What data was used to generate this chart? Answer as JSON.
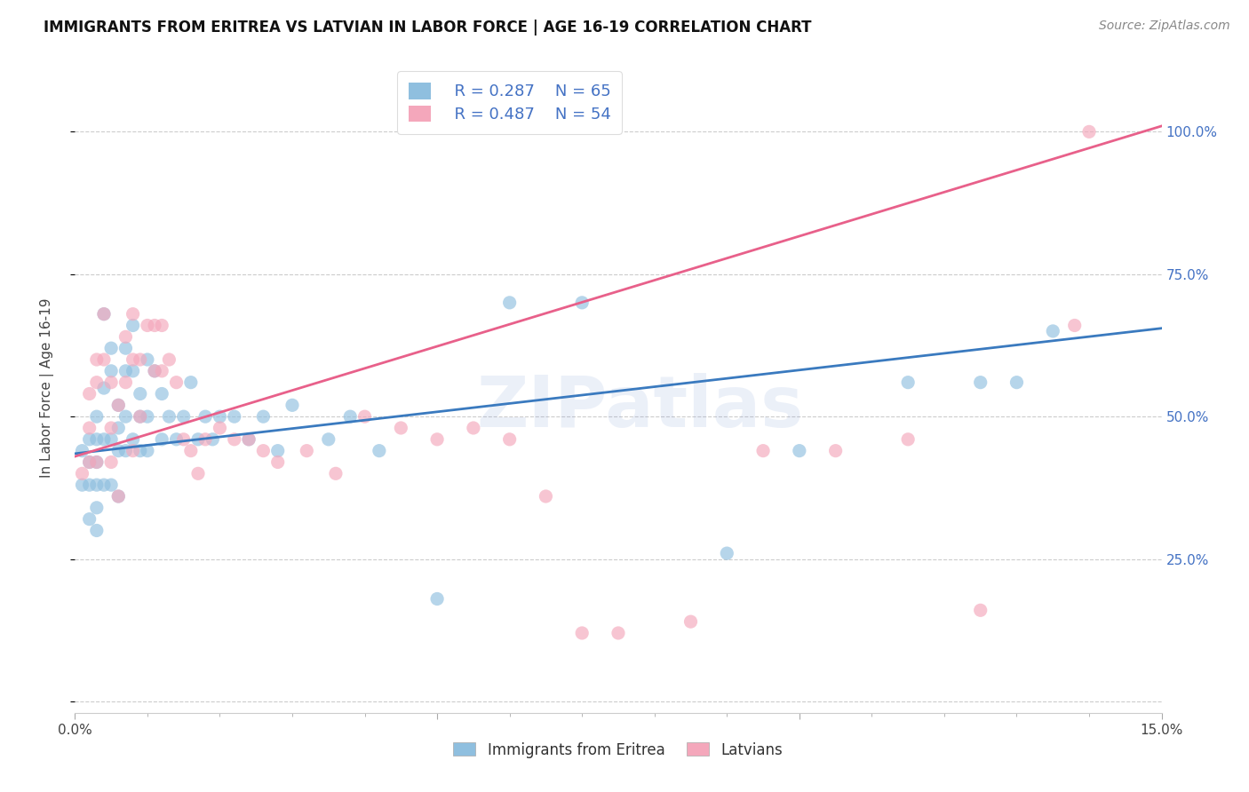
{
  "title": "IMMIGRANTS FROM ERITREA VS LATVIAN IN LABOR FORCE | AGE 16-19 CORRELATION CHART",
  "source": "Source: ZipAtlas.com",
  "ylabel": "In Labor Force | Age 16-19",
  "xlim": [
    0.0,
    0.15
  ],
  "ylim": [
    -0.02,
    1.12
  ],
  "xticks_major": [
    0.0,
    0.05,
    0.1,
    0.15
  ],
  "xtick_major_labels": [
    "0.0%",
    "",
    "",
    "15.0%"
  ],
  "xticks_minor": [
    0.01,
    0.02,
    0.03,
    0.04,
    0.06,
    0.07,
    0.08,
    0.09,
    0.11,
    0.12,
    0.13,
    0.14
  ],
  "yticks_right": [
    0.0,
    0.25,
    0.5,
    0.75,
    1.0
  ],
  "ytick_labels_right": [
    "",
    "25.0%",
    "50.0%",
    "75.0%",
    "100.0%"
  ],
  "ytick_grid_vals": [
    0.0,
    0.25,
    0.5,
    0.75,
    1.0
  ],
  "legend_r1": "R = 0.287",
  "legend_n1": "N = 65",
  "legend_r2": "R = 0.487",
  "legend_n2": "N = 54",
  "blue_color": "#8fbfdf",
  "pink_color": "#f4a7bb",
  "blue_line_color": "#3a7abf",
  "pink_line_color": "#e8608a",
  "watermark": "ZIPatlas",
  "blue_scatter_x": [
    0.001,
    0.001,
    0.002,
    0.002,
    0.002,
    0.002,
    0.003,
    0.003,
    0.003,
    0.003,
    0.003,
    0.003,
    0.004,
    0.004,
    0.004,
    0.004,
    0.005,
    0.005,
    0.005,
    0.005,
    0.006,
    0.006,
    0.006,
    0.006,
    0.007,
    0.007,
    0.007,
    0.007,
    0.008,
    0.008,
    0.008,
    0.009,
    0.009,
    0.009,
    0.01,
    0.01,
    0.01,
    0.011,
    0.012,
    0.012,
    0.013,
    0.014,
    0.015,
    0.016,
    0.017,
    0.018,
    0.019,
    0.02,
    0.022,
    0.024,
    0.026,
    0.028,
    0.03,
    0.035,
    0.038,
    0.042,
    0.05,
    0.06,
    0.07,
    0.09,
    0.1,
    0.115,
    0.125,
    0.13,
    0.135
  ],
  "blue_scatter_y": [
    0.38,
    0.44,
    0.42,
    0.46,
    0.38,
    0.32,
    0.46,
    0.5,
    0.42,
    0.38,
    0.34,
    0.3,
    0.68,
    0.55,
    0.46,
    0.38,
    0.62,
    0.58,
    0.46,
    0.38,
    0.52,
    0.48,
    0.44,
    0.36,
    0.62,
    0.58,
    0.5,
    0.44,
    0.66,
    0.58,
    0.46,
    0.54,
    0.5,
    0.44,
    0.6,
    0.5,
    0.44,
    0.58,
    0.54,
    0.46,
    0.5,
    0.46,
    0.5,
    0.56,
    0.46,
    0.5,
    0.46,
    0.5,
    0.5,
    0.46,
    0.5,
    0.44,
    0.52,
    0.46,
    0.5,
    0.44,
    0.18,
    0.7,
    0.7,
    0.26,
    0.44,
    0.56,
    0.56,
    0.56,
    0.65
  ],
  "pink_scatter_x": [
    0.001,
    0.002,
    0.002,
    0.002,
    0.003,
    0.003,
    0.003,
    0.004,
    0.004,
    0.005,
    0.005,
    0.005,
    0.006,
    0.006,
    0.007,
    0.007,
    0.008,
    0.008,
    0.008,
    0.009,
    0.009,
    0.01,
    0.011,
    0.011,
    0.012,
    0.012,
    0.013,
    0.014,
    0.015,
    0.016,
    0.017,
    0.018,
    0.02,
    0.022,
    0.024,
    0.026,
    0.028,
    0.032,
    0.036,
    0.04,
    0.045,
    0.05,
    0.055,
    0.06,
    0.065,
    0.07,
    0.075,
    0.085,
    0.095,
    0.105,
    0.115,
    0.125,
    0.138,
    0.14
  ],
  "pink_scatter_y": [
    0.4,
    0.54,
    0.48,
    0.42,
    0.6,
    0.56,
    0.42,
    0.68,
    0.6,
    0.56,
    0.48,
    0.42,
    0.52,
    0.36,
    0.64,
    0.56,
    0.68,
    0.6,
    0.44,
    0.6,
    0.5,
    0.66,
    0.66,
    0.58,
    0.66,
    0.58,
    0.6,
    0.56,
    0.46,
    0.44,
    0.4,
    0.46,
    0.48,
    0.46,
    0.46,
    0.44,
    0.42,
    0.44,
    0.4,
    0.5,
    0.48,
    0.46,
    0.48,
    0.46,
    0.36,
    0.12,
    0.12,
    0.14,
    0.44,
    0.44,
    0.46,
    0.16,
    0.66,
    1.0
  ],
  "blue_line_x": [
    0.0,
    0.15
  ],
  "blue_line_y": [
    0.435,
    0.655
  ],
  "pink_line_x": [
    0.0,
    0.15
  ],
  "pink_line_y": [
    0.43,
    1.01
  ]
}
